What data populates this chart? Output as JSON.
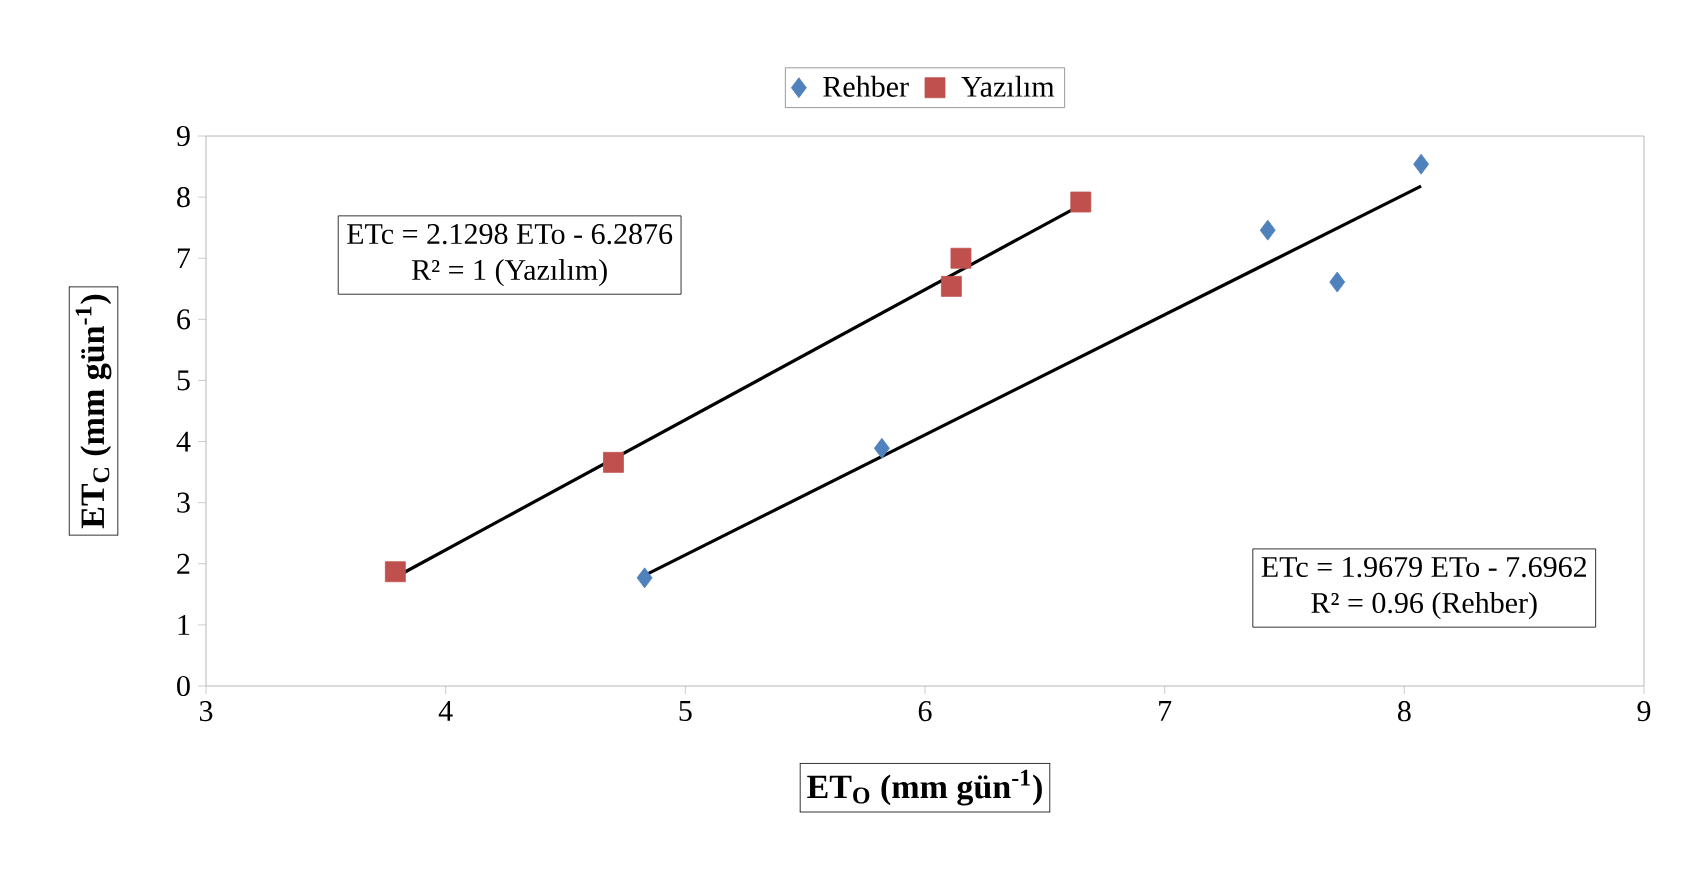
{
  "chart_data": {
    "type": "scatter",
    "xlabel": "ET$_{O}$ (mm gün$^{-1}$)",
    "ylabel": "ET$_{C}$ (mm gün$^{-1}$)",
    "xlim": [
      3,
      9
    ],
    "ylim": [
      0,
      9
    ],
    "xticks": [
      3,
      4,
      5,
      6,
      7,
      8,
      9
    ],
    "yticks": [
      0,
      1,
      2,
      3,
      4,
      5,
      6,
      7,
      8,
      9
    ],
    "legend": "top",
    "grid": false,
    "series": [
      {
        "name": "Rehber",
        "color": "#4f81bd",
        "marker": "diamond",
        "x": [
          4.83,
          5.82,
          7.43,
          7.72,
          8.07
        ],
        "values": [
          1.77,
          3.89,
          7.46,
          6.61,
          8.54
        ]
      },
      {
        "name": "Yazılım",
        "color": "#c0504d",
        "marker": "square",
        "x": [
          3.79,
          4.7,
          6.11,
          6.15,
          6.65
        ],
        "values": [
          1.87,
          3.66,
          6.54,
          7.0,
          7.92
        ]
      },
      {
        "type": "line",
        "color": "#000000",
        "marker": "none",
        "x": [
          3.79,
          6.65
        ],
        "values": [
          1.78,
          7.87
        ]
      },
      {
        "type": "line",
        "color": "#000000",
        "marker": "none",
        "x": [
          4.83,
          8.07
        ],
        "values": [
          1.81,
          8.18
        ]
      }
    ],
    "annotations": [
      "ETc = 2.1298 ETo - 6.2876",
      "R² = 1 (Yazılım)",
      "ETc = 1.9679 ETo - 7.6962",
      "R² = 0.96 (Rehber)"
    ]
  }
}
